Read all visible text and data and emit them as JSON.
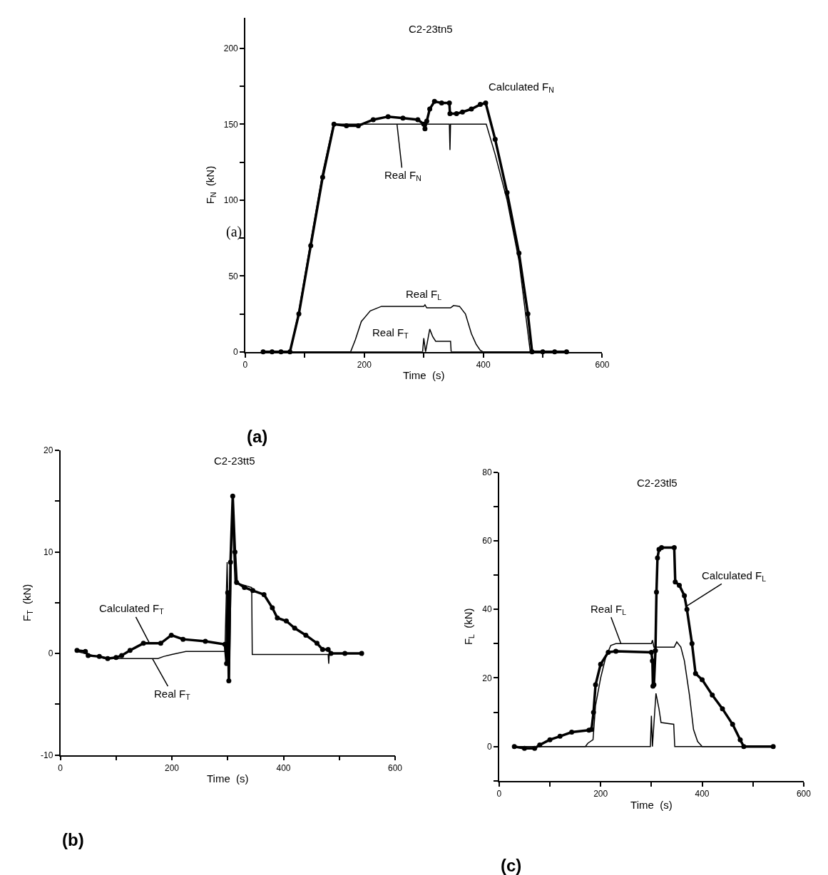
{
  "chart_data": [
    {
      "type": "line",
      "title": "C2-23tn5",
      "xlabel": "Time  (s)",
      "ylabel": "F$_{N}$  (kN)",
      "xlim": [
        0,
        600
      ],
      "ylim": [
        0,
        220
      ],
      "xticks": [
        0,
        {
          "value": 100,
          "label": null
        },
        200,
        {
          "value": 300,
          "label": null
        },
        400,
        {
          "value": 500,
          "label": null
        },
        600
      ],
      "yticks": [
        0,
        {
          "value": 25,
          "label": null
        },
        50,
        {
          "value": 75,
          "label": null
        },
        100,
        {
          "value": 125,
          "label": null
        },
        150,
        {
          "value": 175,
          "label": null
        },
        200
      ],
      "series": [
        {
          "color": "#000000",
          "marker": "circle",
          "x": [
            30,
            45,
            60,
            75,
            90,
            110,
            130,
            149,
            170,
            190,
            215,
            240,
            265,
            290,
            300,
            302,
            305,
            310,
            318,
            330,
            343,
            344,
            355,
            365,
            380,
            395,
            404,
            420,
            440,
            460,
            475,
            482,
            500,
            520,
            540
          ],
          "values": [
            0,
            0,
            0,
            0,
            25,
            70,
            115,
            150,
            149,
            149,
            153,
            155,
            154,
            153,
            150,
            147,
            152,
            160,
            165,
            164,
            164,
            157,
            157,
            158,
            160,
            163,
            164,
            140,
            105,
            65,
            25,
            0,
            0,
            0,
            0
          ]
        },
        {
          "color": "#000000",
          "marker": "none",
          "x": [
            30,
            75,
            90,
            110,
            130,
            148,
            200,
            300,
            343,
            344,
            345,
            346,
            405,
            420,
            440,
            460,
            479,
            500,
            540
          ],
          "values": [
            0,
            0,
            27,
            73,
            118,
            150,
            150,
            150,
            150,
            133,
            150,
            150,
            150,
            130,
            100,
            60,
            0,
            0,
            0
          ]
        },
        {
          "color": "#000000",
          "marker": "none",
          "x": [
            30,
            177,
            185,
            195,
            210,
            229,
            300,
            302,
            305,
            345,
            350,
            360,
            370,
            380,
            388,
            395,
            400,
            540
          ],
          "values": [
            0,
            0,
            8,
            20,
            27,
            30,
            30,
            31,
            29,
            29,
            30.5,
            30,
            25,
            12,
            5,
            1,
            0,
            0
          ]
        },
        {
          "color": "#000000",
          "marker": "none",
          "x": [
            30,
            298,
            300,
            303,
            310,
            315,
            320,
            345,
            346,
            540
          ],
          "values": [
            0,
            0,
            9,
            0,
            15,
            10,
            7,
            7,
            0,
            0
          ]
        }
      ],
      "annotations": [
        {
          "text": "Calculated F$_{N}$",
          "x": 404,
          "y": 164
        },
        {
          "text": "Real F$_{N}$",
          "x": 255,
          "y": 150
        },
        {
          "text": "Real F$_{L}$",
          "x": 300,
          "y": 30
        },
        {
          "text": "Real F$_{T}$",
          "x": 310,
          "y": 15
        },
        "(a)",
        "(a)"
      ]
    },
    {
      "type": "line",
      "title": "C2-23tt5",
      "xlabel": "Time  (s)",
      "ylabel": "F$_{T}$  (kN)",
      "xlim": [
        0,
        600
      ],
      "ylim": [
        -10,
        20
      ],
      "xticks": [
        0,
        {
          "value": 100,
          "label": null
        },
        200,
        {
          "value": 300,
          "label": null
        },
        400,
        {
          "value": 500,
          "label": null
        },
        600
      ],
      "yticks": [
        -10,
        {
          "value": -5,
          "label": null
        },
        0,
        {
          "value": 5,
          "label": null
        },
        10,
        {
          "value": 15,
          "label": null
        },
        20
      ],
      "series": [
        {
          "color": "#000000",
          "marker": "circle",
          "x": [
            30,
            45,
            50,
            70,
            85,
            100,
            110,
            125,
            149,
            180,
            199,
            220,
            260,
            295,
            298,
            300,
            302,
            305,
            309,
            313,
            316,
            330,
            345,
            365,
            380,
            389,
            405,
            420,
            440,
            460,
            470,
            480,
            485,
            510,
            540
          ],
          "values": [
            0.3,
            0.2,
            -0.2,
            -0.3,
            -0.5,
            -0.4,
            -0.2,
            0.3,
            1.0,
            1.0,
            1.8,
            1.4,
            1.2,
            0.9,
            -1,
            6,
            -2.7,
            9,
            15.5,
            10,
            7,
            6.5,
            6.2,
            5.8,
            4.5,
            3.5,
            3.2,
            2.5,
            1.8,
            1.0,
            0.4,
            0.4,
            0,
            0,
            0
          ]
        },
        {
          "color": "#000000",
          "marker": "none",
          "x": [
            30,
            80,
            175,
            185,
            200,
            225,
            295,
            299,
            303,
            308,
            313,
            343,
            344,
            480,
            481,
            482,
            540
          ],
          "values": [
            0.2,
            -0.5,
            -0.5,
            -0.3,
            -0.1,
            0.2,
            0.2,
            9,
            -2.5,
            14,
            7,
            6.5,
            -0.1,
            -0.1,
            -1,
            0,
            0
          ]
        }
      ],
      "annotations": [
        {
          "text": "Calculated F$_{T}$",
          "x": 160,
          "y": 1
        },
        {
          "text": "Real F$_{T}$",
          "x": 165,
          "y": -0.5
        },
        "(b)"
      ]
    },
    {
      "type": "line",
      "title": "C2-23tl5",
      "xlabel": "Time  (s)",
      "ylabel": "F$_{L}$  (kN)",
      "xlim": [
        0,
        600
      ],
      "ylim": [
        -10,
        80
      ],
      "xticks": [
        0,
        {
          "value": 100,
          "label": null
        },
        200,
        {
          "value": 300,
          "label": null
        },
        400,
        {
          "value": 500,
          "label": null
        },
        600
      ],
      "yticks": [
        {
          "value": -10,
          "label": null
        },
        0,
        {
          "value": 10,
          "label": null
        },
        20,
        {
          "value": 30,
          "label": null
        },
        40,
        {
          "value": 50,
          "label": null
        },
        60,
        {
          "value": 70,
          "label": null
        },
        80
      ],
      "series": [
        {
          "color": "#000000",
          "marker": "circle",
          "x": [
            30,
            50,
            70,
            80,
            100,
            120,
            143,
            177,
            182,
            186,
            190,
            200,
            215,
            230,
            300,
            302,
            303,
            305,
            308,
            310,
            312,
            315,
            320,
            345,
            347,
            355,
            365,
            370,
            380,
            387,
            400,
            420,
            440,
            460,
            475,
            482,
            540
          ],
          "values": [
            0,
            -0.5,
            -0.5,
            0.5,
            2,
            3,
            4.2,
            4.8,
            5,
            10,
            18,
            24,
            27.5,
            27.8,
            27.5,
            25,
            17.6,
            18,
            28,
            45,
            55,
            57.5,
            58,
            58,
            48,
            47,
            44,
            40,
            30,
            21.3,
            19.5,
            15,
            11,
            6.5,
            2,
            0,
            0
          ]
        },
        {
          "color": "#000000",
          "marker": "none",
          "x": [
            30,
            170,
            175,
            185,
            190,
            200,
            210,
            220,
            230,
            300,
            302,
            305,
            345,
            350,
            358,
            365,
            375,
            383,
            391,
            400,
            540
          ],
          "values": [
            0,
            0,
            1,
            2,
            12,
            20,
            26,
            29.5,
            30,
            30,
            31,
            29,
            29,
            30.5,
            29,
            25,
            15,
            5,
            1.5,
            0,
            0
          ]
        },
        {
          "color": "#000000",
          "marker": "none",
          "x": [
            30,
            298,
            300,
            302,
            309,
            315,
            319,
            344,
            346,
            540
          ],
          "values": [
            0,
            0,
            9,
            0,
            15.5,
            11,
            7,
            6.5,
            0,
            0
          ]
        }
      ],
      "annotations": [
        {
          "text": "Real F$_{L}$",
          "x": 240,
          "y": 30
        },
        {
          "text": "Calculated F$_{L}$",
          "x": 370,
          "y": 41
        },
        "(c)"
      ]
    }
  ]
}
